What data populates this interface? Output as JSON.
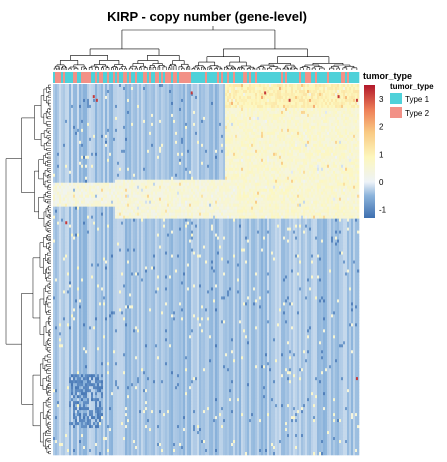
{
  "chart_data": {
    "type": "heatmap",
    "title": "KIRP - copy number (gene-level)",
    "column_annotation": {
      "name": "tumor_type",
      "legend_title": "tumor_type",
      "levels": [
        {
          "label": "Type 1",
          "color": "#4FD1D9"
        },
        {
          "label": "Type 2",
          "color": "#F29187"
        }
      ]
    },
    "color_scale": {
      "min": -1.3,
      "max": 3.5,
      "ticks": [
        "3",
        "2",
        "1",
        "0",
        "-1"
      ],
      "tick_values": [
        3,
        2,
        1,
        0,
        -1
      ],
      "stops": [
        {
          "value": -1.3,
          "color": "#3E6FB0"
        },
        {
          "value": -0.5,
          "color": "#8BB3DB"
        },
        {
          "value": 0,
          "color": "#EEF3F8"
        },
        {
          "value": 0.9,
          "color": "#FDF7BD"
        },
        {
          "value": 1.8,
          "color": "#F9C983"
        },
        {
          "value": 2.6,
          "color": "#EE7F58"
        },
        {
          "value": 3.5,
          "color": "#B2182B"
        }
      ]
    },
    "row_dendrogram": true,
    "column_dendrogram": true,
    "row_labels_shown": false,
    "column_labels_shown": false
  }
}
